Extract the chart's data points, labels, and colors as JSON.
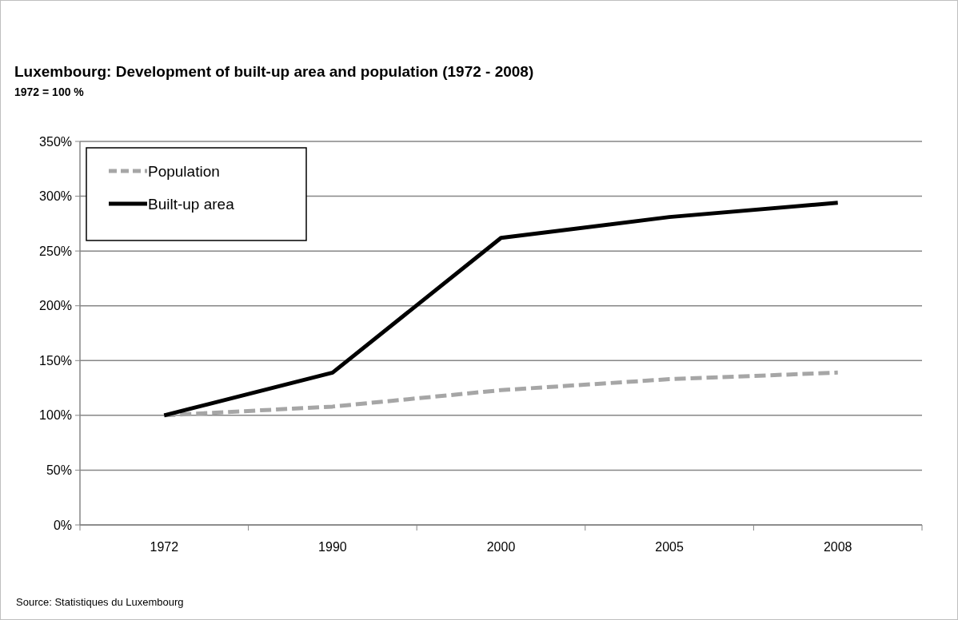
{
  "chart_data": {
    "type": "line",
    "title": "Luxembourg: Development of built-up area and population (1972 - 2008)",
    "subtitle": "1972 = 100 %",
    "categories": [
      "1972",
      "1990",
      "2000",
      "2005",
      "2008"
    ],
    "series": [
      {
        "name": "Population",
        "color": "#a6a6a6",
        "line_style": "dashed",
        "values": [
          100,
          108,
          123,
          133,
          139
        ]
      },
      {
        "name": "Built-up area",
        "color": "#000000",
        "line_style": "solid",
        "values": [
          100,
          139,
          262,
          281,
          294
        ]
      }
    ],
    "ylim": [
      0,
      350
    ],
    "yticks": [
      {
        "value": 0,
        "label": "0%"
      },
      {
        "value": 50,
        "label": "50%"
      },
      {
        "value": 100,
        "label": "100%"
      },
      {
        "value": 150,
        "label": "150%"
      },
      {
        "value": 200,
        "label": "200%"
      },
      {
        "value": 250,
        "label": "250%"
      },
      {
        "value": 300,
        "label": "300%"
      },
      {
        "value": 350,
        "label": "350%"
      }
    ],
    "grid": "y",
    "legend": "top left",
    "marker": "none",
    "annotations": [
      "Source: Statistiques du Luxembourg"
    ]
  }
}
